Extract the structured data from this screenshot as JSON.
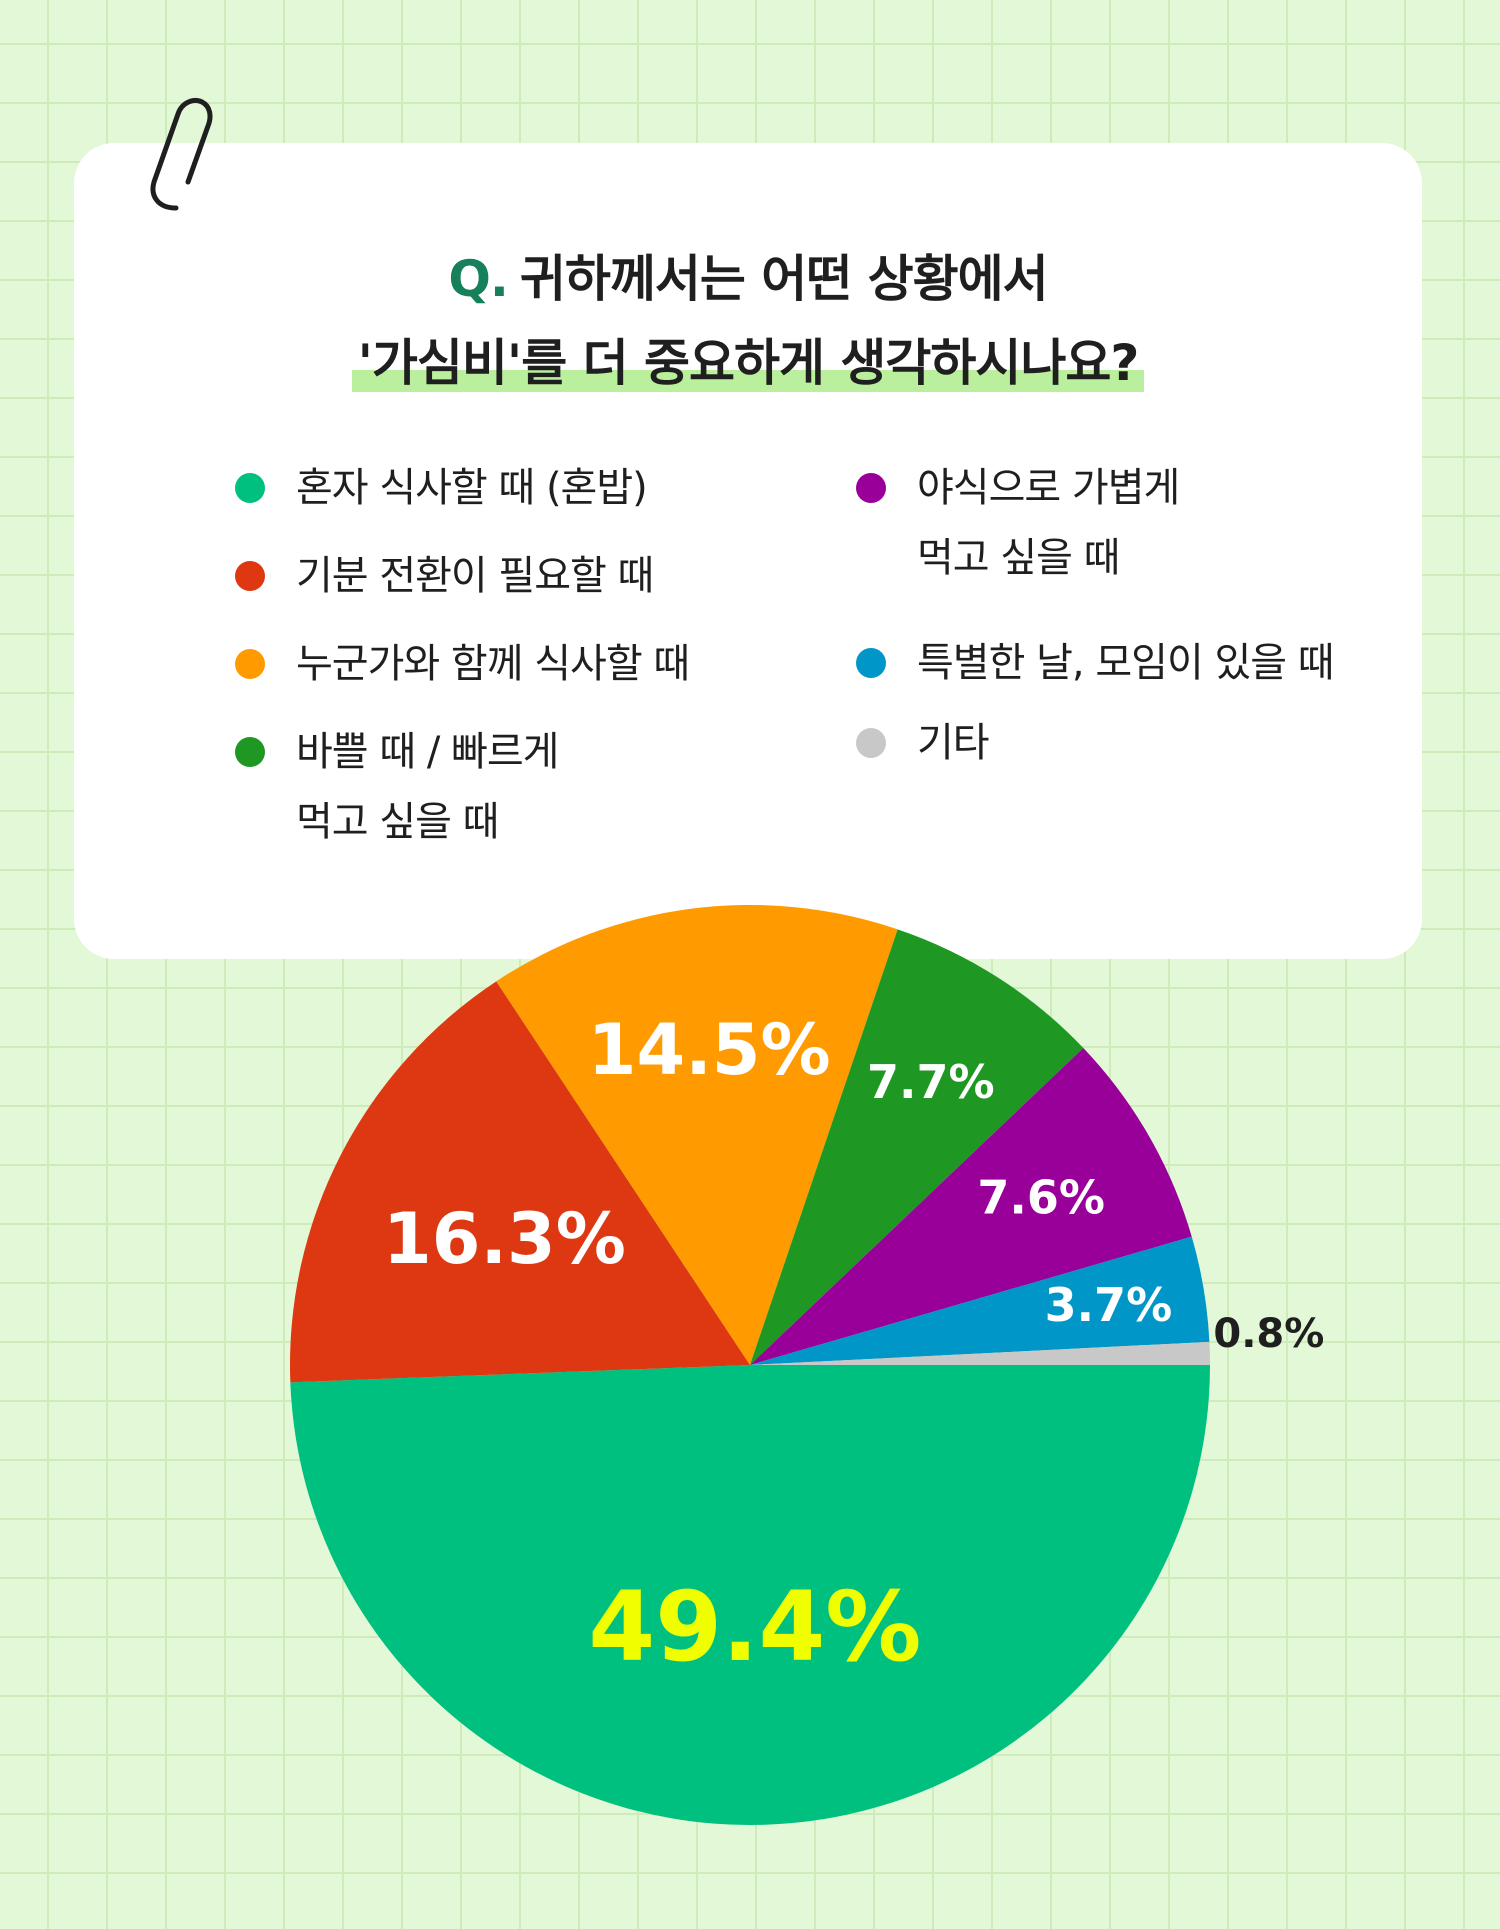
{
  "question": {
    "prefix": "Q.",
    "line1": "귀하께서는 어떤 상황에서",
    "line2": "'가심비'를 더 중요하게 생각하시나요?"
  },
  "legend": [
    {
      "label_lines": [
        "혼자 식사할 때 (혼밥)"
      ],
      "color": "#00c07f"
    },
    {
      "label_lines": [
        "기분 전환이 필요할 때"
      ],
      "color": "#dd3812"
    },
    {
      "label_lines": [
        "누군가와 함께 식사할 때"
      ],
      "color": "#ff9b00"
    },
    {
      "label_lines": [
        "바쁠 때 / 빠르게",
        "먹고 싶을 때"
      ],
      "color": "#1e9822"
    },
    {
      "label_lines": [
        "야식으로 가볍게",
        "먹고 싶을 때"
      ],
      "color": "#990099"
    },
    {
      "label_lines": [
        "특별한 날, 모임이 있을 때"
      ],
      "color": "#0096c8"
    },
    {
      "label_lines": [
        "기타"
      ],
      "color": "#c8c8c8"
    }
  ],
  "chart_data": {
    "type": "pie",
    "start_direction": "3 o'clock, clockwise",
    "slices": [
      {
        "category": "혼자 식사할 때 (혼밥)",
        "value": 49.4,
        "label": "49.4%",
        "color": "#00c07f",
        "label_color": "#f0ff00"
      },
      {
        "category": "기분 전환이 필요할 때",
        "value": 16.3,
        "label": "16.3%",
        "color": "#dd3812",
        "label_color": "#ffffff"
      },
      {
        "category": "누군가와 함께 식사할 때",
        "value": 14.5,
        "label": "14.5%",
        "color": "#ff9b00",
        "label_color": "#ffffff"
      },
      {
        "category": "바쁠 때 / 빠르게 먹고 싶을 때",
        "value": 7.7,
        "label": "7.7%",
        "color": "#1e9822",
        "label_color": "#ffffff"
      },
      {
        "category": "야식으로 가볍게 먹고 싶을 때",
        "value": 7.6,
        "label": "7.6%",
        "color": "#990099",
        "label_color": "#ffffff"
      },
      {
        "category": "특별한 날, 모임이 있을 때",
        "value": 3.7,
        "label": "3.7%",
        "color": "#0096c8",
        "label_color": "#ffffff"
      },
      {
        "category": "기타",
        "value": 0.8,
        "label": "0.8%",
        "color": "#c8c8c8",
        "label_color": "#1f1f1f"
      }
    ]
  }
}
